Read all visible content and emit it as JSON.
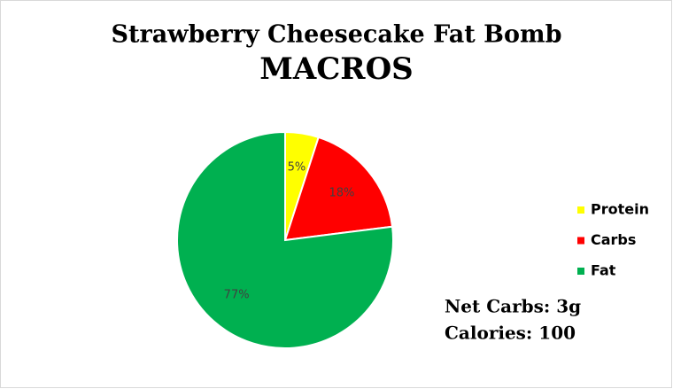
{
  "chart_data": {
    "type": "pie",
    "title": "Strawberry Cheesecake Fat Bomb",
    "subtitle": "MACROS",
    "categories": [
      "Protein",
      "Carbs",
      "Fat"
    ],
    "values": [
      5,
      18,
      77
    ],
    "value_labels": [
      "5%",
      "18%",
      "77%"
    ],
    "colors": [
      "#ffff00",
      "#ff0000",
      "#00b050"
    ],
    "legend": "right",
    "annotations": [
      "Net Carbs: 3g",
      "Calories: 100"
    ]
  }
}
